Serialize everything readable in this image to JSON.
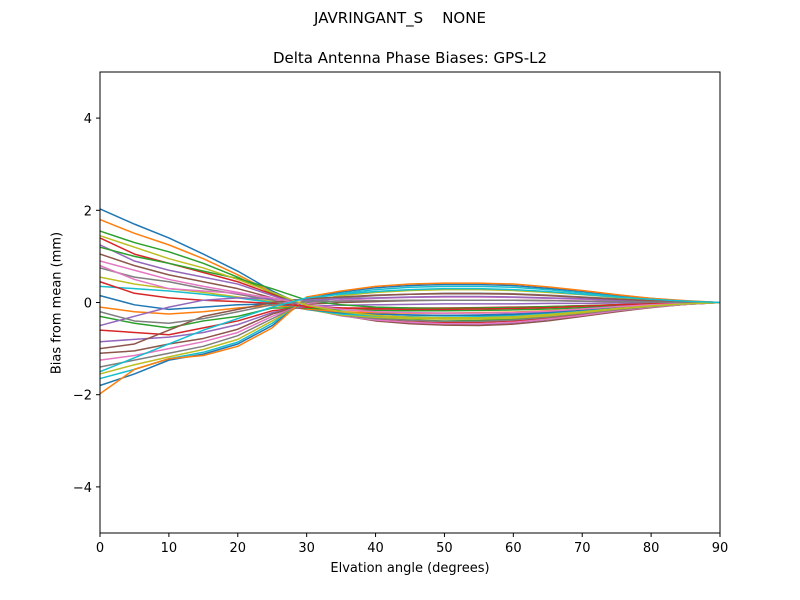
{
  "suptitle": "JAVRINGANT_S    NONE",
  "chart_data": {
    "type": "line",
    "title": "Delta Antenna Phase Biases: GPS-L2",
    "xlabel": "Elvation angle (degrees)",
    "ylabel": "Bias from mean (mm)",
    "xlim": [
      0,
      90
    ],
    "ylim": [
      -5,
      5
    ],
    "xticks": [
      0,
      10,
      20,
      30,
      40,
      50,
      60,
      70,
      80,
      90
    ],
    "yticks": [
      -4,
      -2,
      0,
      2,
      4
    ],
    "ytick_labels": [
      "−4",
      "−2",
      "0",
      "2",
      "4"
    ],
    "grid": false,
    "legend": "none",
    "x": [
      0,
      5,
      10,
      15,
      20,
      25,
      30,
      35,
      40,
      45,
      50,
      55,
      60,
      65,
      70,
      75,
      80,
      85,
      90
    ],
    "colors": [
      "#1f77b4",
      "#ff7f0e",
      "#2ca02c",
      "#d62728",
      "#9467bd",
      "#8c564b",
      "#e377c2",
      "#7f7f7f",
      "#bcbd22",
      "#17becf"
    ],
    "series": [
      {
        "values": [
          2.03,
          1.7,
          1.4,
          1.05,
          0.68,
          0.25,
          -0.1,
          -0.22,
          -0.25,
          -0.27,
          -0.28,
          -0.28,
          -0.27,
          -0.23,
          -0.17,
          -0.11,
          -0.06,
          -0.03,
          0
        ]
      },
      {
        "values": [
          1.8,
          1.5,
          1.25,
          0.95,
          0.6,
          0.22,
          -0.08,
          -0.24,
          -0.3,
          -0.33,
          -0.34,
          -0.33,
          -0.31,
          -0.26,
          -0.2,
          -0.13,
          -0.07,
          -0.03,
          0
        ]
      },
      {
        "values": [
          1.55,
          1.3,
          1.1,
          0.85,
          0.55,
          0.2,
          -0.1,
          -0.26,
          -0.34,
          -0.38,
          -0.4,
          -0.39,
          -0.36,
          -0.3,
          -0.23,
          -0.15,
          -0.08,
          -0.03,
          0
        ]
      },
      {
        "values": [
          1.4,
          1.05,
          0.85,
          0.65,
          0.45,
          0.18,
          -0.12,
          -0.28,
          -0.37,
          -0.42,
          -0.44,
          -0.43,
          -0.4,
          -0.34,
          -0.26,
          -0.17,
          -0.09,
          -0.04,
          0
        ]
      },
      {
        "values": [
          1.25,
          0.9,
          0.7,
          0.55,
          0.4,
          0.15,
          -0.1,
          -0.27,
          -0.38,
          -0.44,
          -0.47,
          -0.47,
          -0.44,
          -0.37,
          -0.28,
          -0.19,
          -0.1,
          -0.04,
          0
        ]
      },
      {
        "values": [
          1.05,
          0.8,
          0.6,
          0.45,
          0.3,
          0.1,
          -0.12,
          -0.28,
          -0.4,
          -0.46,
          -0.49,
          -0.5,
          -0.47,
          -0.4,
          -0.3,
          -0.2,
          -0.11,
          -0.04,
          0
        ]
      },
      {
        "values": [
          0.9,
          0.7,
          0.5,
          0.35,
          0.22,
          0.08,
          -0.13,
          -0.29,
          -0.38,
          -0.43,
          -0.46,
          -0.46,
          -0.43,
          -0.36,
          -0.28,
          -0.18,
          -0.1,
          -0.04,
          0
        ]
      },
      {
        "values": [
          0.75,
          0.55,
          0.45,
          0.3,
          0.18,
          0.05,
          -0.14,
          -0.28,
          -0.35,
          -0.39,
          -0.41,
          -0.41,
          -0.38,
          -0.32,
          -0.24,
          -0.16,
          -0.09,
          -0.03,
          0
        ]
      },
      {
        "values": [
          0.55,
          0.4,
          0.3,
          0.22,
          0.12,
          0.02,
          -0.15,
          -0.27,
          -0.32,
          -0.35,
          -0.36,
          -0.36,
          -0.34,
          -0.29,
          -0.22,
          -0.14,
          -0.08,
          -0.03,
          0
        ]
      },
      {
        "values": [
          0.35,
          0.3,
          0.25,
          0.18,
          0.1,
          0.0,
          -0.15,
          -0.25,
          -0.29,
          -0.31,
          -0.32,
          -0.31,
          -0.29,
          -0.25,
          -0.19,
          -0.12,
          -0.07,
          -0.03,
          0
        ]
      },
      {
        "values": [
          0.15,
          -0.05,
          -0.15,
          -0.1,
          -0.05,
          -0.03,
          -0.15,
          -0.22,
          -0.25,
          -0.27,
          -0.28,
          -0.27,
          -0.25,
          -0.21,
          -0.16,
          -0.1,
          -0.06,
          -0.02,
          0
        ]
      },
      {
        "values": [
          -0.1,
          -0.2,
          -0.25,
          -0.2,
          -0.12,
          -0.06,
          -0.14,
          -0.2,
          -0.22,
          -0.23,
          -0.23,
          -0.22,
          -0.21,
          -0.18,
          -0.14,
          -0.09,
          -0.05,
          -0.02,
          0
        ]
      },
      {
        "values": [
          -0.3,
          -0.45,
          -0.55,
          -0.4,
          -0.3,
          -0.12,
          -0.12,
          -0.16,
          -0.17,
          -0.18,
          -0.18,
          -0.17,
          -0.16,
          -0.14,
          -0.11,
          -0.07,
          -0.04,
          -0.02,
          0
        ]
      },
      {
        "values": [
          -0.6,
          -0.65,
          -0.7,
          -0.55,
          -0.4,
          -0.18,
          -0.1,
          -0.12,
          -0.12,
          -0.12,
          -0.12,
          -0.11,
          -0.1,
          -0.09,
          -0.07,
          -0.05,
          -0.03,
          -0.01,
          0
        ]
      },
      {
        "values": [
          -0.85,
          -0.8,
          -0.75,
          -0.65,
          -0.48,
          -0.22,
          -0.08,
          -0.06,
          -0.05,
          -0.04,
          -0.03,
          -0.03,
          -0.03,
          -0.02,
          -0.02,
          -0.01,
          -0.01,
          0.0,
          0
        ]
      },
      {
        "values": [
          -1.1,
          -1.05,
          -0.9,
          -0.78,
          -0.58,
          -0.25,
          -0.04,
          0.0,
          0.02,
          0.04,
          0.05,
          0.05,
          0.05,
          0.04,
          0.03,
          0.02,
          0.01,
          0.0,
          0
        ]
      },
      {
        "values": [
          -1.25,
          -1.15,
          -1.0,
          -0.85,
          -0.65,
          -0.3,
          -0.02,
          0.05,
          0.09,
          0.11,
          0.12,
          0.12,
          0.11,
          0.09,
          0.07,
          0.05,
          0.03,
          0.01,
          0
        ]
      },
      {
        "values": [
          -1.4,
          -1.25,
          -1.1,
          -0.95,
          -0.72,
          -0.35,
          0.0,
          0.1,
          0.15,
          0.18,
          0.2,
          0.2,
          0.19,
          0.16,
          0.12,
          0.08,
          0.05,
          0.02,
          0
        ]
      },
      {
        "values": [
          -1.55,
          -1.35,
          -1.18,
          -1.02,
          -0.8,
          -0.4,
          0.02,
          0.15,
          0.22,
          0.26,
          0.28,
          0.28,
          0.26,
          0.22,
          0.17,
          0.11,
          0.06,
          0.02,
          0
        ]
      },
      {
        "values": [
          -1.65,
          -1.45,
          -1.22,
          -1.08,
          -0.86,
          -0.45,
          0.05,
          0.2,
          0.28,
          0.33,
          0.35,
          0.35,
          0.33,
          0.28,
          0.21,
          0.14,
          0.08,
          0.03,
          0
        ]
      },
      {
        "values": [
          -1.8,
          -1.55,
          -1.25,
          -1.12,
          -0.9,
          -0.5,
          0.08,
          0.23,
          0.32,
          0.37,
          0.39,
          0.39,
          0.37,
          0.31,
          0.24,
          0.16,
          0.09,
          0.03,
          0
        ]
      },
      {
        "values": [
          -1.98,
          -1.45,
          -1.22,
          -1.15,
          -0.95,
          -0.55,
          0.12,
          0.25,
          0.35,
          0.4,
          0.42,
          0.42,
          0.4,
          0.34,
          0.26,
          0.17,
          0.09,
          0.04,
          0
        ]
      },
      {
        "values": [
          1.2,
          1.0,
          0.85,
          0.68,
          0.52,
          0.3,
          0.05,
          -0.05,
          -0.1,
          -0.12,
          -0.13,
          -0.12,
          -0.11,
          -0.09,
          -0.07,
          -0.05,
          -0.03,
          -0.01,
          0
        ]
      },
      {
        "values": [
          0.45,
          0.2,
          0.1,
          0.05,
          0.02,
          -0.02,
          -0.08,
          -0.12,
          -0.14,
          -0.15,
          -0.15,
          -0.14,
          -0.13,
          -0.11,
          -0.08,
          -0.05,
          -0.03,
          -0.01,
          0
        ]
      },
      {
        "values": [
          -0.5,
          -0.3,
          -0.1,
          0.05,
          0.1,
          0.08,
          0.05,
          0.08,
          0.1,
          0.12,
          0.13,
          0.13,
          0.12,
          0.1,
          0.08,
          0.05,
          0.03,
          0.01,
          0
        ]
      },
      {
        "values": [
          -1.0,
          -0.9,
          -0.6,
          -0.3,
          -0.15,
          0.0,
          0.08,
          0.12,
          0.16,
          0.18,
          0.19,
          0.19,
          0.18,
          0.15,
          0.11,
          0.07,
          0.04,
          0.02,
          0
        ]
      },
      {
        "values": [
          0.8,
          0.5,
          0.3,
          0.25,
          0.2,
          0.1,
          -0.05,
          -0.15,
          -0.2,
          -0.22,
          -0.23,
          -0.23,
          -0.22,
          -0.19,
          -0.14,
          -0.09,
          -0.05,
          -0.02,
          0
        ]
      },
      {
        "values": [
          -0.2,
          -0.4,
          -0.45,
          -0.35,
          -0.2,
          -0.05,
          0.02,
          0.03,
          0.04,
          0.05,
          0.05,
          0.05,
          0.05,
          0.04,
          0.03,
          0.02,
          0.01,
          0.0,
          0
        ]
      },
      {
        "values": [
          1.45,
          1.2,
          0.95,
          0.75,
          0.5,
          0.22,
          -0.06,
          -0.2,
          -0.28,
          -0.32,
          -0.33,
          -0.33,
          -0.31,
          -0.26,
          -0.2,
          -0.13,
          -0.07,
          -0.03,
          0
        ]
      },
      {
        "values": [
          -1.5,
          -1.2,
          -0.9,
          -0.6,
          -0.35,
          -0.1,
          0.1,
          0.18,
          0.24,
          0.28,
          0.3,
          0.3,
          0.28,
          0.24,
          0.18,
          0.12,
          0.07,
          0.03,
          0
        ]
      }
    ]
  }
}
